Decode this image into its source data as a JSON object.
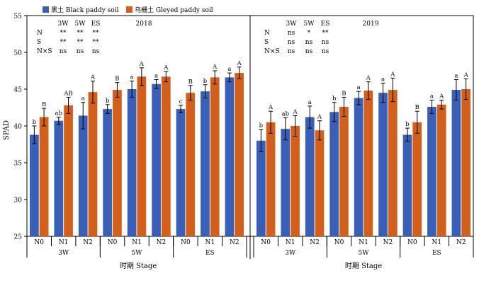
{
  "colors": {
    "black_soil": "#3a5fb7",
    "gleyed_soil": "#d2601c"
  },
  "chart_data": {
    "type": "bar",
    "ylabel": "SPAD",
    "xlabel": "时期 Stage",
    "ylim": [
      25,
      55
    ],
    "yticks": [
      25,
      30,
      35,
      40,
      45,
      50,
      55
    ],
    "legend": [
      "黑土 Black paddy soil",
      "乌栅土 Gleyed paddy soil"
    ],
    "stages": [
      "3W",
      "5W",
      "ES"
    ],
    "levels": [
      "N0",
      "N1",
      "N2"
    ],
    "series": [
      {
        "name": "黑土 Black paddy soil",
        "colorKey": "black_soil"
      },
      {
        "name": "乌栅土 Gleyed paddy soil",
        "colorKey": "gleyed_soil"
      }
    ],
    "panels": [
      {
        "title": "2018",
        "sig_table": {
          "header": [
            "3W",
            "5W",
            "ES"
          ],
          "rows": [
            {
              "label": "N",
              "values": [
                "**",
                "**",
                "**"
              ]
            },
            {
              "label": "S",
              "values": [
                "**",
                "**",
                "**"
              ]
            },
            {
              "label": "N×S",
              "values": [
                "ns",
                "ns",
                "ns"
              ]
            }
          ]
        },
        "groups": [
          {
            "stage": "3W",
            "level": "N0",
            "black": 38.8,
            "black_err": 1.2,
            "black_lab": "b",
            "gleyed": 41.2,
            "gleyed_err": 1.2,
            "gleyed_lab": "B"
          },
          {
            "stage": "3W",
            "level": "N1",
            "black": 40.7,
            "black_err": 0.5,
            "black_lab": "ab",
            "gleyed": 42.8,
            "gleyed_err": 1.1,
            "gleyed_lab": "AB"
          },
          {
            "stage": "3W",
            "level": "N2",
            "black": 41.4,
            "black_err": 1.8,
            "black_lab": "a",
            "gleyed": 44.6,
            "gleyed_err": 1.5,
            "gleyed_lab": "A"
          },
          {
            "stage": "5W",
            "level": "N0",
            "black": 42.3,
            "black_err": 0.6,
            "black_lab": "b",
            "gleyed": 44.9,
            "gleyed_err": 1.0,
            "gleyed_lab": "B"
          },
          {
            "stage": "5W",
            "level": "N1",
            "black": 45.0,
            "black_err": 1.1,
            "black_lab": "a",
            "gleyed": 46.7,
            "gleyed_err": 1.2,
            "gleyed_lab": "A"
          },
          {
            "stage": "5W",
            "level": "N2",
            "black": 45.7,
            "black_err": 0.6,
            "black_lab": "a",
            "gleyed": 46.7,
            "gleyed_err": 0.7,
            "gleyed_lab": "A"
          },
          {
            "stage": "ES",
            "level": "N0",
            "black": 42.3,
            "black_err": 0.5,
            "black_lab": "c",
            "gleyed": 44.5,
            "gleyed_err": 1.0,
            "gleyed_lab": "B"
          },
          {
            "stage": "ES",
            "level": "N1",
            "black": 44.7,
            "black_err": 0.9,
            "black_lab": "b",
            "gleyed": 46.6,
            "gleyed_err": 0.9,
            "gleyed_lab": "A"
          },
          {
            "stage": "ES",
            "level": "N2",
            "black": 46.6,
            "black_err": 0.6,
            "black_lab": "a",
            "gleyed": 47.2,
            "gleyed_err": 0.8,
            "gleyed_lab": "A"
          }
        ]
      },
      {
        "title": "2019",
        "sig_table": {
          "header": [
            "3W",
            "5W",
            "ES"
          ],
          "rows": [
            {
              "label": "N",
              "values": [
                "ns",
                "*",
                "**"
              ]
            },
            {
              "label": "S",
              "values": [
                "ns",
                "ns",
                "ns"
              ]
            },
            {
              "label": "N×S",
              "values": [
                "ns",
                "ns",
                "ns"
              ]
            }
          ]
        },
        "groups": [
          {
            "stage": "3W",
            "level": "N0",
            "black": 38.0,
            "black_err": 1.5,
            "black_lab": "b",
            "gleyed": 40.5,
            "gleyed_err": 1.5,
            "gleyed_lab": "A"
          },
          {
            "stage": "3W",
            "level": "N1",
            "black": 39.6,
            "black_err": 1.5,
            "black_lab": "ab",
            "gleyed": 40.0,
            "gleyed_err": 1.4,
            "gleyed_lab": "A"
          },
          {
            "stage": "3W",
            "level": "N2",
            "black": 41.2,
            "black_err": 1.5,
            "black_lab": "a",
            "gleyed": 39.4,
            "gleyed_err": 1.3,
            "gleyed_lab": "A"
          },
          {
            "stage": "5W",
            "level": "N0",
            "black": 41.9,
            "black_err": 1.3,
            "black_lab": "b",
            "gleyed": 42.6,
            "gleyed_err": 1.3,
            "gleyed_lab": "B"
          },
          {
            "stage": "5W",
            "level": "N1",
            "black": 43.8,
            "black_err": 0.9,
            "black_lab": "a",
            "gleyed": 44.8,
            "gleyed_err": 1.2,
            "gleyed_lab": "A"
          },
          {
            "stage": "5W",
            "level": "N2",
            "black": 44.5,
            "black_err": 1.3,
            "black_lab": "a",
            "gleyed": 44.9,
            "gleyed_err": 1.6,
            "gleyed_lab": "A"
          },
          {
            "stage": "ES",
            "level": "N0",
            "black": 38.8,
            "black_err": 0.9,
            "black_lab": "b",
            "gleyed": 40.5,
            "gleyed_err": 1.5,
            "gleyed_lab": "B"
          },
          {
            "stage": "ES",
            "level": "N1",
            "black": 42.6,
            "black_err": 0.9,
            "black_lab": "a",
            "gleyed": 42.9,
            "gleyed_err": 0.6,
            "gleyed_lab": "A"
          },
          {
            "stage": "ES",
            "level": "N2",
            "black": 44.9,
            "black_err": 1.4,
            "black_lab": "a",
            "gleyed": 45.0,
            "gleyed_err": 1.4,
            "gleyed_lab": "A"
          }
        ]
      }
    ]
  }
}
